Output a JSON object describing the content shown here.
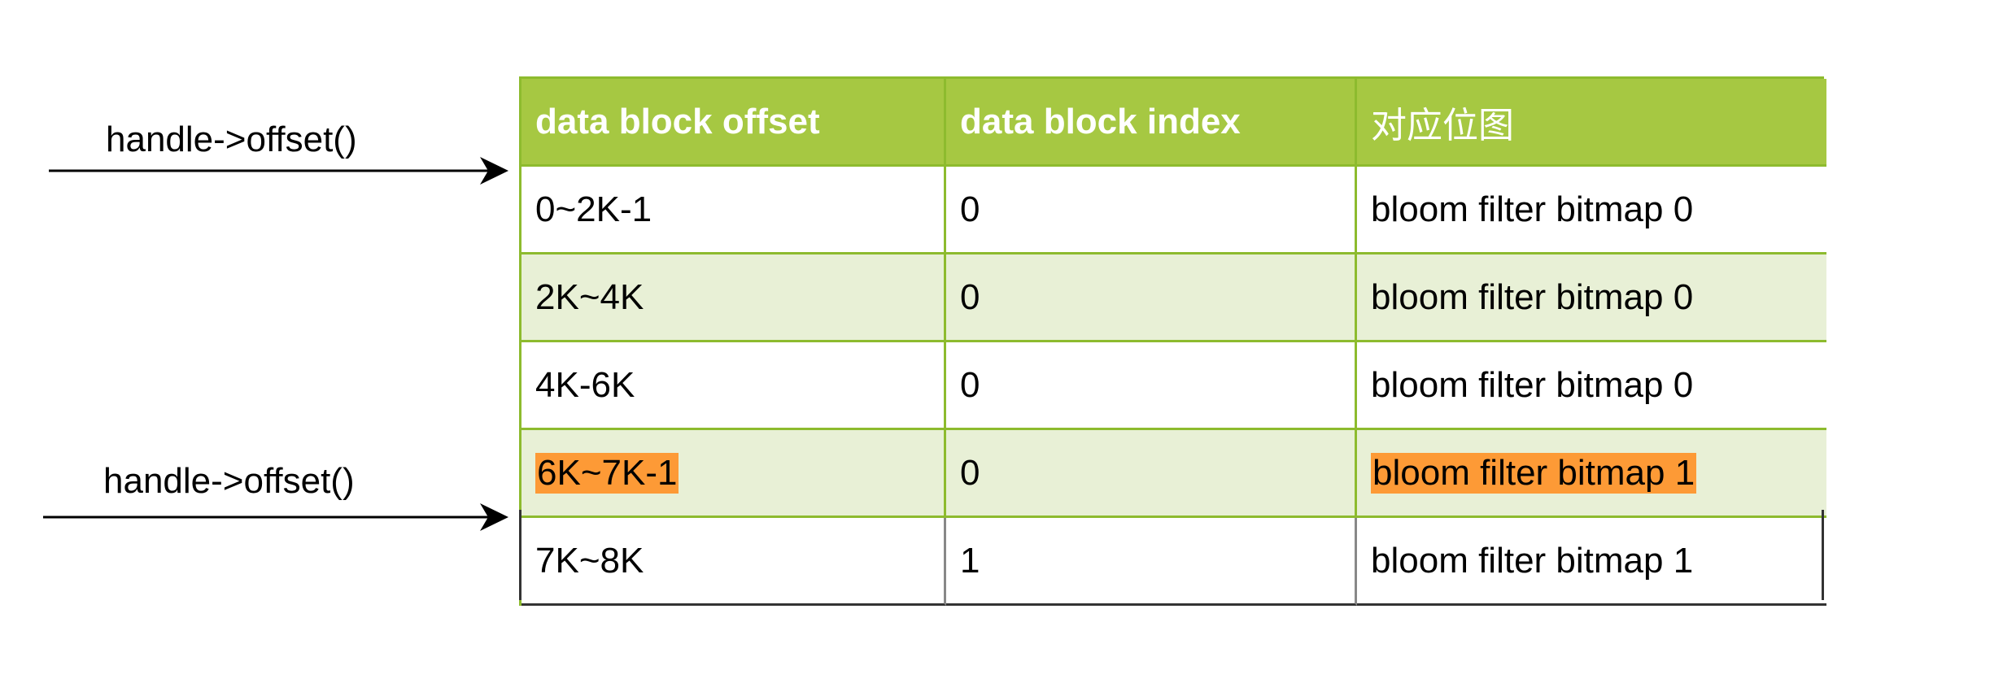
{
  "arrows": [
    {
      "label": "handle->offset()",
      "target_row": "row-0"
    },
    {
      "label": "handle->offset()",
      "target_row": "row-4"
    }
  ],
  "table": {
    "headers": [
      "data block offset",
      "data block index",
      "对应位图"
    ],
    "rows": [
      {
        "offset": "0~2K-1",
        "index": "0",
        "bitmap": "bloom filter bitmap 0",
        "highlight": false
      },
      {
        "offset": "2K~4K",
        "index": "0",
        "bitmap": "bloom filter bitmap 0",
        "highlight": false
      },
      {
        "offset": "4K-6K",
        "index": "0",
        "bitmap": "bloom filter bitmap 0",
        "highlight": false
      },
      {
        "offset": "6K~7K-1",
        "index": "0",
        "bitmap": "bloom filter bitmap 1",
        "highlight": true
      },
      {
        "offset": "7K~8K",
        "index": "1",
        "bitmap": "bloom filter bitmap 1",
        "highlight": false
      }
    ]
  },
  "colors": {
    "header_bg": "#a6c842",
    "border": "#8dbb2e",
    "alt_row_bg": "#e8f0d6",
    "highlight": "#fd9a36"
  }
}
